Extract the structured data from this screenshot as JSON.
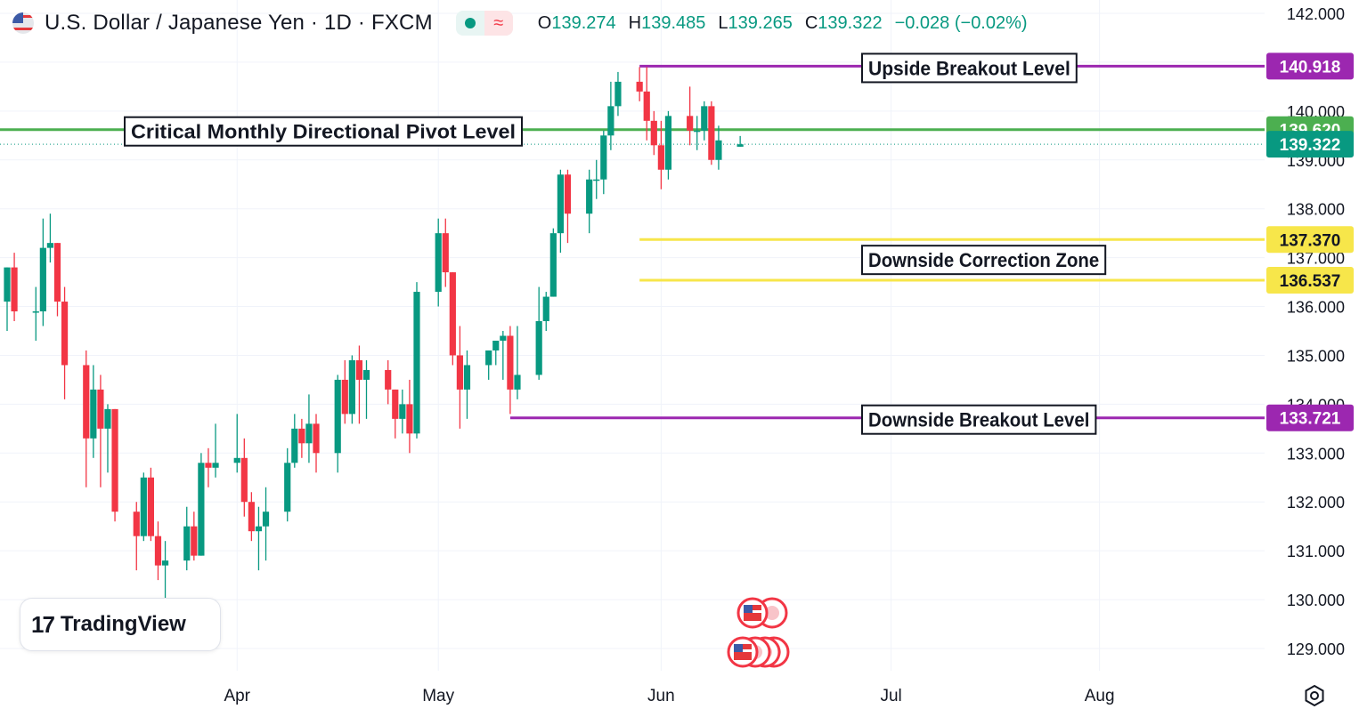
{
  "header": {
    "title": "U.S. Dollar / Japanese Yen · 1D · FXCM",
    "ohlc": [
      {
        "k": "O",
        "v": "139.274"
      },
      {
        "k": "H",
        "v": "139.485"
      },
      {
        "k": "L",
        "v": "139.265"
      },
      {
        "k": "C",
        "v": "139.322"
      },
      {
        "k": "",
        "v": "−0.028 (−0.02%)"
      }
    ]
  },
  "logo": {
    "mark": "17",
    "text": "TradingView"
  },
  "icons": {
    "flag": "us-flag-icon",
    "live": "live-dot-icon",
    "indicator": "wave-icon",
    "settings": "settings-icon",
    "events": "economic-event-icon"
  },
  "colors": {
    "up": "#089981",
    "down": "#f23645",
    "pivot": "#4caf50",
    "breakout": "#9c27b0",
    "correction": "#f7e64a",
    "last": "#089981"
  },
  "chart_data": {
    "type": "candlestick",
    "title": "U.S. Dollar / Japanese Yen · 1D · FXCM",
    "ylim": [
      128.5,
      142.3
    ],
    "y_ticks": [
      "129.000",
      "130.000",
      "131.000",
      "132.000",
      "133.000",
      "134.000",
      "135.000",
      "136.000",
      "137.000",
      "138.000",
      "139.000",
      "140.000",
      "141.000",
      "142.000"
    ],
    "x_ticks": [
      {
        "label": "Apr",
        "date": "2023-04-03"
      },
      {
        "label": "May",
        "date": "2023-05-01"
      },
      {
        "label": "Jun",
        "date": "2023-06-01"
      },
      {
        "label": "Jul",
        "date": "2023-07-03"
      },
      {
        "label": "Aug",
        "date": "2023-08-01"
      }
    ],
    "x_range": [
      "2023-03-02",
      "2023-09-01"
    ],
    "candles": [
      {
        "date": "2023-03-02",
        "o": 136.1,
        "h": 136.8,
        "l": 135.5,
        "c": 136.8
      },
      {
        "date": "2023-03-03",
        "o": 136.8,
        "h": 137.1,
        "l": 135.7,
        "c": 135.9
      },
      {
        "date": "2023-03-06",
        "o": 135.9,
        "h": 136.4,
        "l": 135.3,
        "c": 135.9
      },
      {
        "date": "2023-03-07",
        "o": 135.9,
        "h": 137.8,
        "l": 135.6,
        "c": 137.2
      },
      {
        "date": "2023-03-08",
        "o": 137.2,
        "h": 137.9,
        "l": 136.9,
        "c": 137.3
      },
      {
        "date": "2023-03-09",
        "o": 137.3,
        "h": 137.3,
        "l": 135.8,
        "c": 136.1
      },
      {
        "date": "2023-03-10",
        "o": 136.1,
        "h": 136.4,
        "l": 134.1,
        "c": 134.8
      },
      {
        "date": "2023-03-13",
        "o": 134.8,
        "h": 135.1,
        "l": 132.3,
        "c": 133.3
      },
      {
        "date": "2023-03-14",
        "o": 133.3,
        "h": 134.8,
        "l": 132.9,
        "c": 134.3
      },
      {
        "date": "2023-03-15",
        "o": 134.3,
        "h": 134.6,
        "l": 132.3,
        "c": 133.5
      },
      {
        "date": "2023-03-16",
        "o": 133.5,
        "h": 134.0,
        "l": 132.6,
        "c": 133.9
      },
      {
        "date": "2023-03-17",
        "o": 133.9,
        "h": 133.9,
        "l": 131.6,
        "c": 131.8
      },
      {
        "date": "2023-03-20",
        "o": 131.8,
        "h": 132.0,
        "l": 130.6,
        "c": 131.3
      },
      {
        "date": "2023-03-21",
        "o": 131.3,
        "h": 132.6,
        "l": 131.2,
        "c": 132.5
      },
      {
        "date": "2023-03-22",
        "o": 132.5,
        "h": 132.7,
        "l": 131.2,
        "c": 131.3
      },
      {
        "date": "2023-03-23",
        "o": 131.3,
        "h": 131.6,
        "l": 130.4,
        "c": 130.7
      },
      {
        "date": "2023-03-24",
        "o": 130.7,
        "h": 131.2,
        "l": 129.9,
        "c": 130.8
      },
      {
        "date": "2023-03-27",
        "o": 130.8,
        "h": 131.9,
        "l": 130.6,
        "c": 131.5
      },
      {
        "date": "2023-03-28",
        "o": 131.5,
        "h": 131.8,
        "l": 130.8,
        "c": 130.9
      },
      {
        "date": "2023-03-29",
        "o": 130.9,
        "h": 133.0,
        "l": 130.9,
        "c": 132.8
      },
      {
        "date": "2023-03-30",
        "o": 132.8,
        "h": 133.1,
        "l": 132.3,
        "c": 132.7
      },
      {
        "date": "2023-03-31",
        "o": 132.7,
        "h": 133.6,
        "l": 132.5,
        "c": 132.8
      },
      {
        "date": "2023-04-03",
        "o": 132.8,
        "h": 133.8,
        "l": 132.6,
        "c": 132.9
      },
      {
        "date": "2023-04-04",
        "o": 132.9,
        "h": 133.3,
        "l": 131.7,
        "c": 132.0
      },
      {
        "date": "2023-04-05",
        "o": 132.0,
        "h": 132.2,
        "l": 131.2,
        "c": 131.4
      },
      {
        "date": "2023-04-06",
        "o": 131.4,
        "h": 131.9,
        "l": 130.6,
        "c": 131.5
      },
      {
        "date": "2023-04-07",
        "o": 131.5,
        "h": 132.3,
        "l": 130.8,
        "c": 131.8
      },
      {
        "date": "2023-04-10",
        "o": 131.8,
        "h": 133.1,
        "l": 131.6,
        "c": 132.8
      },
      {
        "date": "2023-04-11",
        "o": 132.8,
        "h": 133.8,
        "l": 132.7,
        "c": 133.5
      },
      {
        "date": "2023-04-12",
        "o": 133.5,
        "h": 133.7,
        "l": 132.9,
        "c": 133.2
      },
      {
        "date": "2023-04-13",
        "o": 133.2,
        "h": 134.2,
        "l": 132.8,
        "c": 133.6
      },
      {
        "date": "2023-04-14",
        "o": 133.6,
        "h": 133.8,
        "l": 132.6,
        "c": 133.0
      },
      {
        "date": "2023-04-17",
        "o": 133.0,
        "h": 134.6,
        "l": 132.6,
        "c": 134.5
      },
      {
        "date": "2023-04-18",
        "o": 134.5,
        "h": 134.9,
        "l": 133.6,
        "c": 133.8
      },
      {
        "date": "2023-04-19",
        "o": 133.8,
        "h": 135.0,
        "l": 133.6,
        "c": 134.9
      },
      {
        "date": "2023-04-20",
        "o": 134.9,
        "h": 135.2,
        "l": 133.6,
        "c": 134.5
      },
      {
        "date": "2023-04-21",
        "o": 134.5,
        "h": 134.9,
        "l": 133.7,
        "c": 134.7
      },
      {
        "date": "2023-04-24",
        "o": 134.7,
        "h": 134.9,
        "l": 134.0,
        "c": 134.3
      },
      {
        "date": "2023-04-25",
        "o": 134.3,
        "h": 134.3,
        "l": 133.3,
        "c": 133.7
      },
      {
        "date": "2023-04-26",
        "o": 133.7,
        "h": 134.3,
        "l": 133.4,
        "c": 134.0
      },
      {
        "date": "2023-04-27",
        "o": 134.0,
        "h": 134.5,
        "l": 133.0,
        "c": 133.4
      },
      {
        "date": "2023-04-28",
        "o": 133.4,
        "h": 136.5,
        "l": 133.3,
        "c": 136.3
      },
      {
        "date": "2023-05-01",
        "o": 136.3,
        "h": 137.8,
        "l": 136.0,
        "c": 137.5
      },
      {
        "date": "2023-05-02",
        "o": 137.5,
        "h": 137.8,
        "l": 136.4,
        "c": 136.7
      },
      {
        "date": "2023-05-03",
        "o": 136.7,
        "h": 136.7,
        "l": 134.8,
        "c": 135.0
      },
      {
        "date": "2023-05-04",
        "o": 135.0,
        "h": 135.6,
        "l": 133.5,
        "c": 134.3
      },
      {
        "date": "2023-05-05",
        "o": 134.3,
        "h": 135.1,
        "l": 133.7,
        "c": 134.8
      },
      {
        "date": "2023-05-08",
        "o": 134.8,
        "h": 135.1,
        "l": 134.5,
        "c": 135.1
      },
      {
        "date": "2023-05-09",
        "o": 135.1,
        "h": 135.3,
        "l": 134.8,
        "c": 135.3
      },
      {
        "date": "2023-05-10",
        "o": 135.3,
        "h": 135.5,
        "l": 134.5,
        "c": 135.4
      },
      {
        "date": "2023-05-11",
        "o": 135.4,
        "h": 135.6,
        "l": 133.8,
        "c": 134.3
      },
      {
        "date": "2023-05-12",
        "o": 134.3,
        "h": 135.6,
        "l": 134.1,
        "c": 134.6
      },
      {
        "date": "2023-05-15",
        "o": 134.6,
        "h": 136.4,
        "l": 134.5,
        "c": 135.7
      },
      {
        "date": "2023-05-16",
        "o": 135.7,
        "h": 136.3,
        "l": 135.5,
        "c": 136.2
      },
      {
        "date": "2023-05-17",
        "o": 136.2,
        "h": 137.6,
        "l": 136.2,
        "c": 137.5
      },
      {
        "date": "2023-05-18",
        "o": 137.5,
        "h": 138.8,
        "l": 137.1,
        "c": 138.7
      },
      {
        "date": "2023-05-19",
        "o": 138.7,
        "h": 138.8,
        "l": 137.3,
        "c": 137.9
      },
      {
        "date": "2023-05-22",
        "o": 137.9,
        "h": 138.8,
        "l": 137.5,
        "c": 138.6
      },
      {
        "date": "2023-05-23",
        "o": 138.6,
        "h": 139.0,
        "l": 138.2,
        "c": 138.6
      },
      {
        "date": "2023-05-24",
        "o": 138.6,
        "h": 139.6,
        "l": 138.3,
        "c": 139.5
      },
      {
        "date": "2023-05-25",
        "o": 139.5,
        "h": 140.6,
        "l": 139.2,
        "c": 140.1
      },
      {
        "date": "2023-05-26",
        "o": 140.1,
        "h": 140.8,
        "l": 139.9,
        "c": 140.6
      },
      {
        "date": "2023-05-29",
        "o": 140.6,
        "h": 140.9,
        "l": 140.2,
        "c": 140.4
      },
      {
        "date": "2023-05-30",
        "o": 140.4,
        "h": 140.9,
        "l": 139.4,
        "c": 139.8
      },
      {
        "date": "2023-05-31",
        "o": 139.8,
        "h": 140.0,
        "l": 139.1,
        "c": 139.3
      },
      {
        "date": "2023-06-01",
        "o": 139.3,
        "h": 139.8,
        "l": 138.4,
        "c": 138.8
      },
      {
        "date": "2023-06-02",
        "o": 138.8,
        "h": 140.0,
        "l": 138.6,
        "c": 139.9
      },
      {
        "date": "2023-06-05",
        "o": 139.9,
        "h": 140.5,
        "l": 139.3,
        "c": 139.6
      },
      {
        "date": "2023-06-06",
        "o": 139.6,
        "h": 139.9,
        "l": 139.2,
        "c": 139.6
      },
      {
        "date": "2023-06-07",
        "o": 139.6,
        "h": 140.2,
        "l": 139.4,
        "c": 140.1
      },
      {
        "date": "2023-06-08",
        "o": 140.1,
        "h": 140.2,
        "l": 138.9,
        "c": 139.0
      },
      {
        "date": "2023-06-09",
        "o": 139.0,
        "h": 139.7,
        "l": 138.8,
        "c": 139.4
      },
      {
        "date": "2023-06-12",
        "o": 139.27,
        "h": 139.49,
        "l": 139.27,
        "c": 139.32
      }
    ],
    "levels": [
      {
        "id": "upside",
        "label": "Upside Breakout Level",
        "price": 140.918,
        "price_label": "140.918",
        "color": "#9c27b0",
        "from": "2023-05-29"
      },
      {
        "id": "pivot",
        "label": "Critical Monthly Directional Pivot Level",
        "price": 139.62,
        "price_label": "139.620",
        "color": "#4caf50",
        "from": "2023-03-01"
      },
      {
        "id": "corr_hi",
        "label": "",
        "price": 137.37,
        "price_label": "137.370",
        "color": "#f7e64a",
        "from": "2023-05-29"
      },
      {
        "id": "corr_lo",
        "label": "",
        "price": 136.537,
        "price_label": "136.537",
        "color": "#f7e64a",
        "from": "2023-05-29"
      },
      {
        "id": "downside",
        "label": "Downside Breakout Level",
        "price": 133.721,
        "price_label": "133.721",
        "color": "#9c27b0",
        "from": "2023-05-11"
      }
    ],
    "zone_label": "Downside Correction Zone",
    "last_price": {
      "value": 139.322,
      "label": "139.322"
    },
    "grid": true
  }
}
